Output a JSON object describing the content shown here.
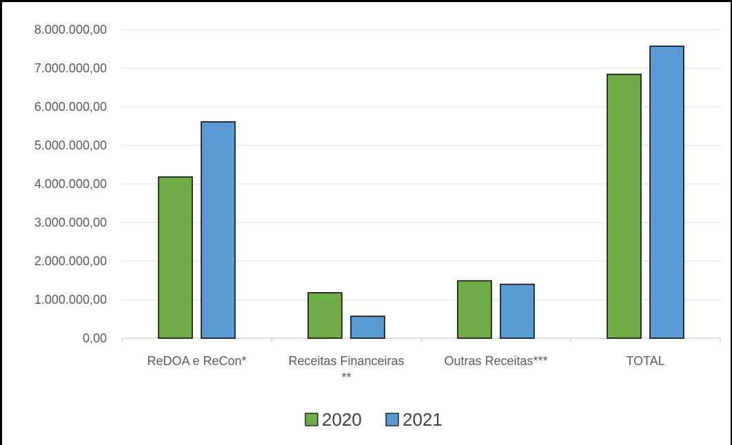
{
  "chart_data": {
    "type": "bar",
    "categories": [
      [
        "ReDOA e ReCon*"
      ],
      [
        "Receitas Financeiras",
        "**"
      ],
      [
        "Outras Receitas***"
      ],
      [
        "TOTAL"
      ]
    ],
    "series": [
      {
        "name": "2020",
        "color": "#70AD47",
        "values": [
          4180000,
          1180000,
          1490000,
          6840000
        ]
      },
      {
        "name": "2021",
        "color": "#5B9BD5",
        "values": [
          5610000,
          570000,
          1400000,
          7570000
        ]
      }
    ],
    "ylim": [
      0,
      8000000
    ],
    "yticks": [
      0,
      1000000,
      2000000,
      3000000,
      4000000,
      5000000,
      6000000,
      7000000,
      8000000
    ],
    "ytick_labels": [
      "0,00",
      "1.000.000,00",
      "2.000.000,00",
      "3.000.000,00",
      "4.000.000,00",
      "5.000.000,00",
      "6.000.000,00",
      "7.000.000,00",
      "8.000.000,00"
    ],
    "grid": true,
    "legend_position": "bottom"
  }
}
